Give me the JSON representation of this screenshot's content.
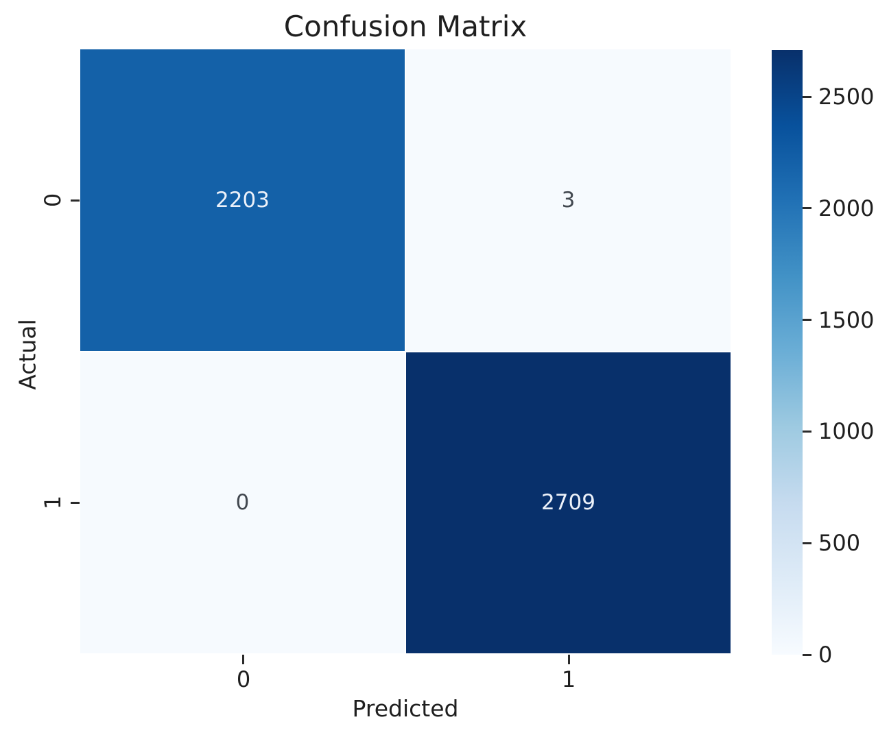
{
  "figure": {
    "background": "#ffffff",
    "text_color": "#1f1f1f",
    "tick_color": "#2b2b2b"
  },
  "chart_data": {
    "type": "heatmap",
    "title": "Confusion Matrix",
    "xlabel": "Predicted",
    "ylabel": "Actual",
    "x_tick_labels": [
      "0",
      "1"
    ],
    "y_tick_labels": [
      "0",
      "1"
    ],
    "matrix": [
      [
        2203,
        3
      ],
      [
        0,
        2709
      ]
    ],
    "vmin": 0,
    "vmax": 2709,
    "colormap": "Blues",
    "colormap_stops": [
      "#f7fbff",
      "#deebf7",
      "#c6dbef",
      "#9ecae1",
      "#6baed6",
      "#4292c6",
      "#2171b5",
      "#08519c",
      "#08306b"
    ],
    "colorbar_ticks": [
      0,
      500,
      1000,
      1500,
      2000,
      2500
    ],
    "colorbar_position": "right",
    "grid": false,
    "cell_fill_colors": [
      [
        "#1461a8",
        "#f6fafe"
      ],
      [
        "#f6fafe",
        "#08306b"
      ]
    ],
    "cell_text_colors": [
      [
        "#ecf1f9",
        "#41474f"
      ],
      [
        "#41474f",
        "#ecf1f9"
      ]
    ]
  }
}
